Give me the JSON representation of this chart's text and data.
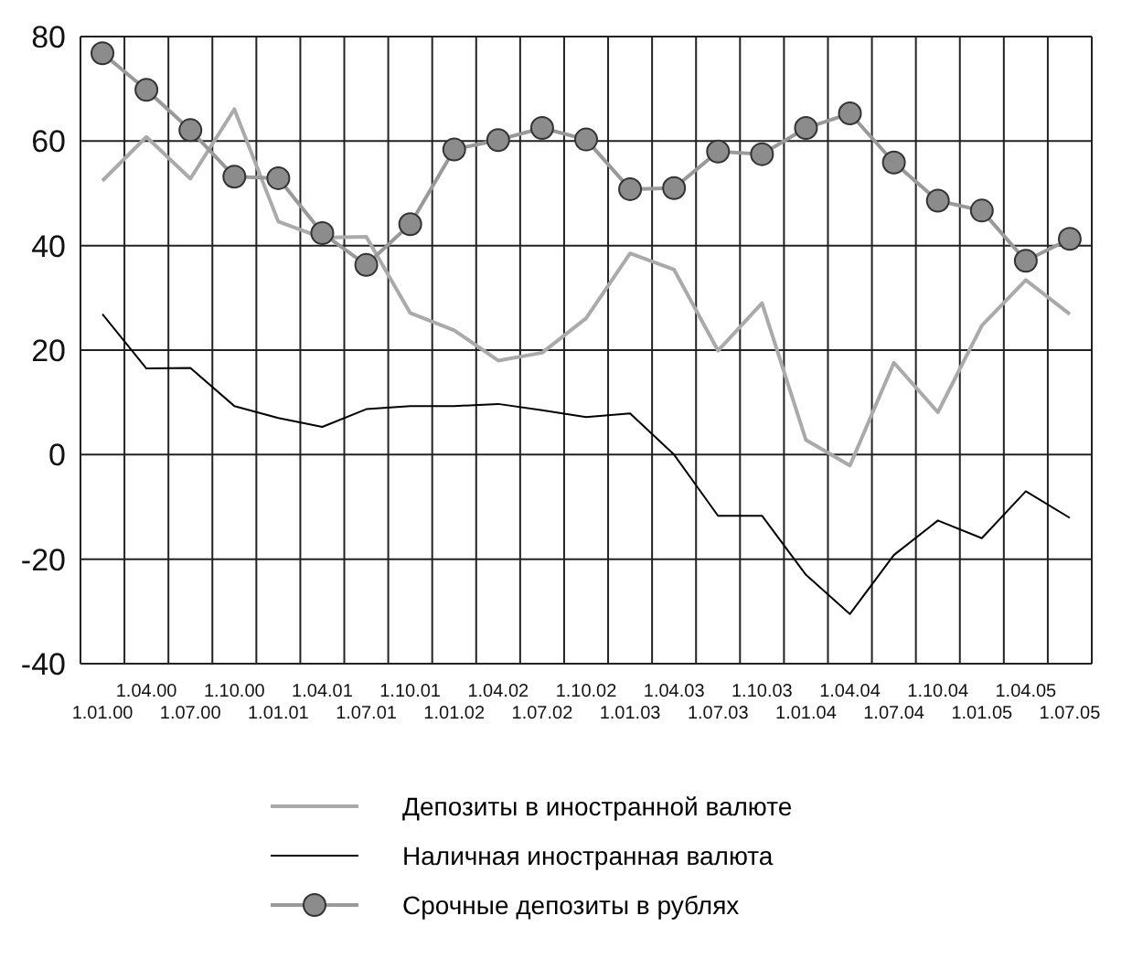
{
  "chart_data": {
    "type": "line",
    "categories": [
      "1.01.00",
      "1.04.00",
      "1.07.00",
      "1.10.00",
      "1.01.01",
      "1.04.01",
      "1.07.01",
      "1.10.01",
      "1.01.02",
      "1.04.02",
      "1.07.02",
      "1.10.02",
      "1.01.03",
      "1.04.03",
      "1.07.03",
      "1.10.03",
      "1.01.04",
      "1.04.04",
      "1.07.04",
      "1.10.04",
      "1.01.05",
      "1.04.05",
      "1.07.05"
    ],
    "series": [
      {
        "name": "Депозиты в иностранной валюте",
        "color": "#aaaaaa",
        "values": [
          52.4,
          60.8,
          52.8,
          66.1,
          44.6,
          41.5,
          41.7,
          27.1,
          23.8,
          18.0,
          19.5,
          26.1,
          38.5,
          35.4,
          19.9,
          29.0,
          2.8,
          -2.1,
          17.6,
          8.1,
          24.7,
          33.4,
          26.9
        ]
      },
      {
        "name": "Наличная иностранная валюта",
        "color": "#000000",
        "values": [
          26.9,
          16.5,
          16.6,
          9.3,
          7.0,
          5.3,
          8.7,
          9.3,
          9.3,
          9.7,
          8.5,
          7.2,
          7.9,
          0,
          -11.7,
          -11.7,
          -23.0,
          -30.5,
          -19.2,
          -12.6,
          -16.0,
          -7.0,
          -12.1
        ]
      },
      {
        "name": "Срочные депозиты в рублях",
        "color": "#999999",
        "marker": "circle",
        "values": [
          76.8,
          69.8,
          62.1,
          53.2,
          52.9,
          42.4,
          36.3,
          44.1,
          58.4,
          60.2,
          62.5,
          60.3,
          50.8,
          51.0,
          58.0,
          57.5,
          62.5,
          65.3,
          55.9,
          48.6,
          46.7,
          37.1,
          41.3
        ]
      }
    ],
    "ylim": [
      -40,
      80
    ],
    "yticks": [
      -40,
      -20,
      0,
      20,
      40,
      60,
      80
    ],
    "grid": true,
    "legend": "bottom"
  }
}
